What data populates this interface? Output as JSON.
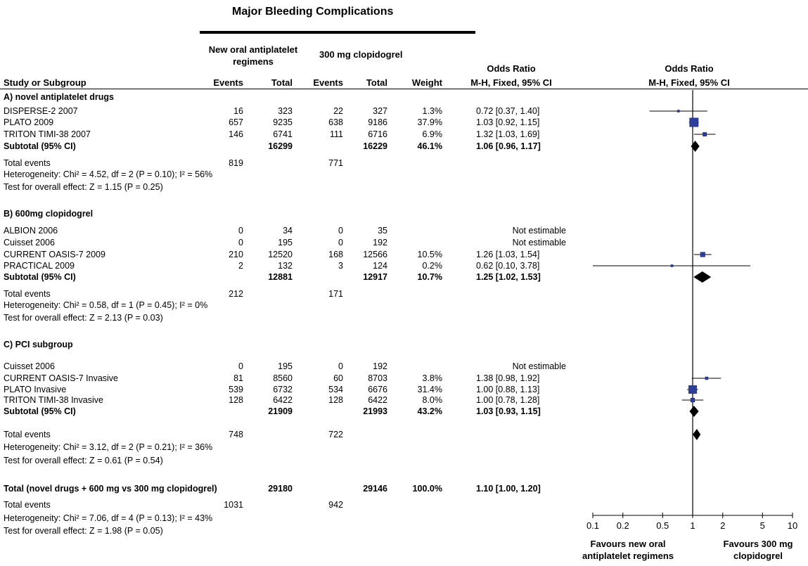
{
  "title": "Major Bleeding Complications",
  "headers": {
    "group1": "New oral antiplatelet regimens",
    "group2": "300 mg clopidogrel",
    "study": "Study or Subgroup",
    "events": "Events",
    "total": "Total",
    "weight": "Weight",
    "or_title": "Odds Ratio",
    "or_method": "M-H, Fixed, 95% CI",
    "plot_title": "Odds Ratio",
    "plot_method": "M-H, Fixed, 95% CI"
  },
  "rows": [
    {
      "kind": "section",
      "label": "A) novel antiplatelet drugs"
    },
    {
      "kind": "study",
      "label": "DISPERSE-2 2007",
      "e1": "16",
      "t1": "323",
      "e2": "22",
      "t2": "327",
      "weight": "1.3%",
      "ci": "0.72 [0.37, 1.40]"
    },
    {
      "kind": "study",
      "label": "PLATO 2009",
      "e1": "657",
      "t1": "9235",
      "e2": "638",
      "t2": "9186",
      "weight": "37.9%",
      "ci": "1.03 [0.92, 1.15]"
    },
    {
      "kind": "study",
      "label": "TRITON TIMI-38 2007",
      "e1": "146",
      "t1": "6741",
      "e2": "111",
      "t2": "6716",
      "weight": "6.9%",
      "ci": "1.32 [1.03, 1.69]"
    },
    {
      "kind": "subtotal",
      "label": "Subtotal (95% CI)",
      "t1": "16299",
      "t2": "16229",
      "weight": "46.1%",
      "ci": "1.06 [0.96, 1.17]"
    },
    {
      "kind": "events",
      "label": "Total events",
      "e1": "819",
      "e2": "771"
    },
    {
      "kind": "note",
      "label": "Heterogeneity: Chi² = 4.52, df = 2 (P = 0.10); I² = 56%"
    },
    {
      "kind": "note",
      "label": "Test for overall effect: Z = 1.15 (P = 0.25)"
    },
    {
      "kind": "section",
      "label": "B) 600mg clopidogrel"
    },
    {
      "kind": "study",
      "label": "ALBION 2006",
      "e1": "0",
      "t1": "34",
      "e2": "0",
      "t2": "35",
      "weight": "",
      "ci": "Not estimable"
    },
    {
      "kind": "study",
      "label": "Cuisset 2006",
      "e1": "0",
      "t1": "195",
      "e2": "0",
      "t2": "192",
      "weight": "",
      "ci": "Not estimable"
    },
    {
      "kind": "study",
      "label": "CURRENT OASIS-7 2009",
      "e1": "210",
      "t1": "12520",
      "e2": "168",
      "t2": "12566",
      "weight": "10.5%",
      "ci": "1.26 [1.03, 1.54]"
    },
    {
      "kind": "study",
      "label": "PRACTICAL 2009",
      "e1": "2",
      "t1": "132",
      "e2": "3",
      "t2": "124",
      "weight": "0.2%",
      "ci": "0.62 [0.10, 3.78]"
    },
    {
      "kind": "subtotal",
      "label": "Subtotal (95% CI)",
      "t1": "12881",
      "t2": "12917",
      "weight": "10.7%",
      "ci": "1.25 [1.02, 1.53]"
    },
    {
      "kind": "events",
      "label": "Total events",
      "e1": "212",
      "e2": "171"
    },
    {
      "kind": "note",
      "label": "Heterogeneity: Chi² = 0.58, df = 1 (P = 0.45); I² = 0%"
    },
    {
      "kind": "note",
      "label": "Test for overall effect: Z = 2.13 (P = 0.03)"
    },
    {
      "kind": "section",
      "label": "C) PCI subgroup"
    },
    {
      "kind": "study",
      "label": "Cuisset 2006",
      "e1": "0",
      "t1": "195",
      "e2": "0",
      "t2": "192",
      "weight": "",
      "ci": "Not estimable"
    },
    {
      "kind": "study",
      "label": "CURRENT OASIS-7 Invasive",
      "e1": "81",
      "t1": "8560",
      "e2": "60",
      "t2": "8703",
      "weight": "3.8%",
      "ci": "1.38 [0.98, 1.92]"
    },
    {
      "kind": "study",
      "label": "PLATO Invasive",
      "e1": "539",
      "t1": "6732",
      "e2": "534",
      "t2": "6676",
      "weight": "31.4%",
      "ci": "1.00 [0.88, 1.13]"
    },
    {
      "kind": "study",
      "label": "TRITON TIMI-38 Invasive",
      "e1": "128",
      "t1": "6422",
      "e2": "128",
      "t2": "6422",
      "weight": "8.0%",
      "ci": "1.00 [0.78, 1.28]"
    },
    {
      "kind": "subtotal",
      "label": "Subtotal (95% CI)",
      "t1": "21909",
      "t2": "21993",
      "weight": "43.2%",
      "ci": "1.03 [0.93, 1.15]"
    },
    {
      "kind": "events",
      "label": "Total events",
      "e1": "748",
      "e2": "722"
    },
    {
      "kind": "note",
      "label": "Heterogeneity: Chi² = 3.12, df = 2 (P = 0.21); I² = 36%"
    },
    {
      "kind": "note",
      "label": "Test for overall effect: Z = 0.61 (P = 0.54)"
    },
    {
      "kind": "total",
      "label": "Total (novel drugs + 600 mg vs 300 mg clopidogrel)",
      "t1": "29180",
      "t2": "29146",
      "weight": "100.0%",
      "ci": "1.10 [1.00, 1.20]"
    },
    {
      "kind": "events",
      "label": "Total events",
      "e1": "1031",
      "e2": "942"
    },
    {
      "kind": "note",
      "label": "Heterogeneity: Chi² = 7.06, df = 4 (P = 0.13); I² = 43%"
    },
    {
      "kind": "note",
      "label": "Test for overall effect: Z = 1.98 (P = 0.05)"
    }
  ],
  "chart_data": {
    "type": "forest",
    "x_scale": "log",
    "xlim": [
      0.1,
      10
    ],
    "ticks": [
      0.1,
      0.2,
      0.5,
      1,
      2,
      5,
      10
    ],
    "tick_labels": [
      "0.1",
      "0.2",
      "0.5",
      "1",
      "2",
      "5",
      "10"
    ],
    "favours_left": "Favours new oral antiplatelet regimens",
    "favours_right": "Favours 300 mg clopidogrel",
    "marker_color": "#2e3f9a",
    "points": [
      {
        "label": "DISPERSE-2 2007",
        "or": 0.72,
        "lo": 0.37,
        "hi": 1.4,
        "weight": 1.3,
        "kind": "study"
      },
      {
        "label": "PLATO 2009",
        "or": 1.03,
        "lo": 0.92,
        "hi": 1.15,
        "weight": 37.9,
        "kind": "study"
      },
      {
        "label": "TRITON TIMI-38 2007",
        "or": 1.32,
        "lo": 1.03,
        "hi": 1.69,
        "weight": 6.9,
        "kind": "study"
      },
      {
        "label": "Subtotal A",
        "or": 1.06,
        "lo": 0.96,
        "hi": 1.17,
        "weight": 46.1,
        "kind": "diamond"
      },
      {
        "label": "CURRENT OASIS-7 2009",
        "or": 1.26,
        "lo": 1.03,
        "hi": 1.54,
        "weight": 10.5,
        "kind": "study"
      },
      {
        "label": "PRACTICAL 2009",
        "or": 0.62,
        "lo": 0.1,
        "hi": 3.78,
        "weight": 0.2,
        "kind": "study"
      },
      {
        "label": "Subtotal B",
        "or": 1.25,
        "lo": 1.02,
        "hi": 1.53,
        "weight": 10.7,
        "kind": "diamond"
      },
      {
        "label": "CURRENT OASIS-7 Invasive",
        "or": 1.38,
        "lo": 0.98,
        "hi": 1.92,
        "weight": 3.8,
        "kind": "study"
      },
      {
        "label": "PLATO Invasive",
        "or": 1.0,
        "lo": 0.88,
        "hi": 1.13,
        "weight": 31.4,
        "kind": "study"
      },
      {
        "label": "TRITON TIMI-38 Invasive",
        "or": 1.0,
        "lo": 0.78,
        "hi": 1.28,
        "weight": 8.0,
        "kind": "study"
      },
      {
        "label": "Subtotal C",
        "or": 1.03,
        "lo": 0.93,
        "hi": 1.15,
        "weight": 43.2,
        "kind": "diamond"
      },
      {
        "label": "Total",
        "or": 1.1,
        "lo": 1.0,
        "hi": 1.2,
        "weight": 100.0,
        "kind": "diamond"
      }
    ]
  }
}
